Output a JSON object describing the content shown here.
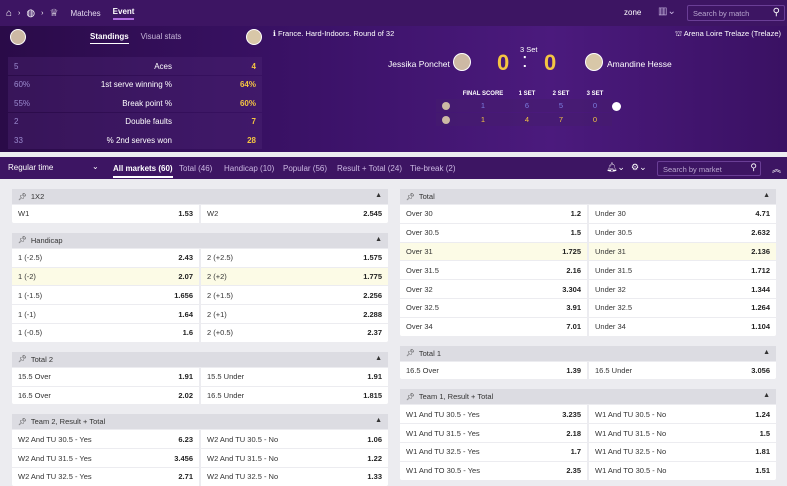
{
  "topnav": {
    "matches": "Matches",
    "event": "Event",
    "zone": "zone",
    "search_placeholder": "Search by match"
  },
  "hero": {
    "tabs": [
      "Standings",
      "Visual stats"
    ],
    "tournament": "France. Hard-Indoors. Round of 32",
    "arena": "Arena Loire Trelaze (Trelaze)",
    "set_label": "3 Set",
    "player1": "Jessika Ponchet",
    "player2": "Amandine Hesse",
    "score1": "0",
    "colon": ":",
    "score2": "0",
    "stats": [
      {
        "l": "5",
        "label": "Aces",
        "r": "4"
      },
      {
        "l": "60%",
        "label": "1st serve winning %",
        "r": "64%"
      },
      {
        "l": "55%",
        "label": "Break point %",
        "r": "60%"
      },
      {
        "l": "2",
        "label": "Double faults",
        "r": "7"
      },
      {
        "l": "33",
        "label": "% 2nd serves won",
        "r": "28"
      }
    ],
    "grid_headers": [
      "FINAL SCORE",
      "1 SET",
      "2 SET",
      "3 SET"
    ],
    "grid_rows": [
      [
        "1",
        "6",
        "5",
        "0"
      ],
      [
        "1",
        "4",
        "7",
        "0"
      ]
    ]
  },
  "marketbar": {
    "period": "Regular time",
    "tabs": [
      "All markets (60)",
      "Total (46)",
      "Handicap (10)",
      "Popular (56)",
      "Result + Total (24)",
      "Tie-break (2)"
    ],
    "search_placeholder": "Search by market"
  },
  "left": [
    {
      "title": "1X2",
      "rows": [
        [
          [
            "W1",
            "1.53"
          ],
          [
            "W2",
            "2.545"
          ]
        ]
      ]
    },
    {
      "title": "Handicap",
      "rows": [
        [
          [
            "1 (-2.5)",
            "2.43"
          ],
          [
            "2 (+2.5)",
            "1.575"
          ]
        ],
        [
          [
            "1 (-2)",
            "2.07"
          ],
          [
            "2 (+2)",
            "1.775"
          ]
        ],
        [
          [
            "1 (-1.5)",
            "1.656"
          ],
          [
            "2 (+1.5)",
            "2.256"
          ]
        ],
        [
          [
            "1 (-1)",
            "1.64"
          ],
          [
            "2 (+1)",
            "2.288"
          ]
        ],
        [
          [
            "1 (-0.5)",
            "1.6"
          ],
          [
            "2 (+0.5)",
            "2.37"
          ]
        ]
      ]
    },
    {
      "title": "Total 2",
      "rows": [
        [
          [
            "15.5 Over",
            "1.91"
          ],
          [
            "15.5 Under",
            "1.91"
          ]
        ],
        [
          [
            "16.5 Over",
            "2.02"
          ],
          [
            "16.5 Under",
            "1.815"
          ]
        ]
      ]
    },
    {
      "title": "Team 2, Result + Total",
      "rows": [
        [
          [
            "W2 And TU 30.5 - Yes",
            "6.23"
          ],
          [
            "W2 And TU 30.5 - No",
            "1.06"
          ]
        ],
        [
          [
            "W2 And TU 31.5 - Yes",
            "3.456"
          ],
          [
            "W2 And TU 31.5 - No",
            "1.22"
          ]
        ],
        [
          [
            "W2 And TU 32.5 - Yes",
            "2.71"
          ],
          [
            "W2 And TU 32.5 - No",
            "1.33"
          ]
        ]
      ]
    }
  ],
  "right": [
    {
      "title": "Total",
      "rows": [
        [
          [
            "Over 30",
            "1.2"
          ],
          [
            "Under 30",
            "4.71"
          ]
        ],
        [
          [
            "Over 30.5",
            "1.5"
          ],
          [
            "Under 30.5",
            "2.632"
          ]
        ],
        [
          [
            "Over 31",
            "1.725"
          ],
          [
            "Under 31",
            "2.136"
          ]
        ],
        [
          [
            "Over 31.5",
            "2.16"
          ],
          [
            "Under 31.5",
            "1.712"
          ]
        ],
        [
          [
            "Over 32",
            "3.304"
          ],
          [
            "Under 32",
            "1.344"
          ]
        ],
        [
          [
            "Over 32.5",
            "3.91"
          ],
          [
            "Under 32.5",
            "1.264"
          ]
        ],
        [
          [
            "Over 34",
            "7.01"
          ],
          [
            "Under 34",
            "1.104"
          ]
        ]
      ]
    },
    {
      "title": "Total 1",
      "rows": [
        [
          [
            "16.5 Over",
            "1.39"
          ],
          [
            "16.5 Under",
            "3.056"
          ]
        ]
      ]
    },
    {
      "title": "Team 1, Result + Total",
      "rows": [
        [
          [
            "W1 And TU 30.5 - Yes",
            "3.235"
          ],
          [
            "W1 And TU 30.5 - No",
            "1.24"
          ]
        ],
        [
          [
            "W1 And TU 31.5 - Yes",
            "2.18"
          ],
          [
            "W1 And TU 31.5 - No",
            "1.5"
          ]
        ],
        [
          [
            "W1 And TU 32.5 - Yes",
            "1.7"
          ],
          [
            "W1 And TU 32.5 - No",
            "1.81"
          ]
        ],
        [
          [
            "W1 And TO 30.5 - Yes",
            "2.35"
          ],
          [
            "W1 And TO 30.5 - No",
            "1.51"
          ]
        ]
      ]
    }
  ]
}
